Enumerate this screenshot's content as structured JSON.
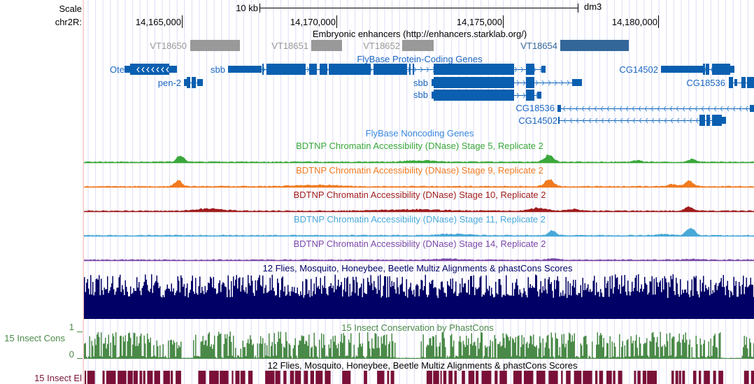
{
  "header": {
    "scale_label": "Scale",
    "scale_bar_label": "10 kb",
    "assembly": "dm3",
    "chrom_label": "chr2R:",
    "ticks": [
      "14,165,000",
      "14,170,000",
      "14,175,000",
      "14,180,000"
    ]
  },
  "colors": {
    "grid": "#dcdcf8",
    "left_edge": "#f8c8c8",
    "gene": "#0a5fb0",
    "gene_label": "#1a66c0",
    "noncoding_label": "#3a88dd",
    "enhancer_gray": "#999999",
    "enhancer_active": "#336699",
    "stage5": "#3aa83a",
    "stage9": "#f07a20",
    "stage10": "#a01c1c",
    "stage11": "#48a8d8",
    "stage14": "#7a48a8",
    "multiz": "#000066",
    "cons": "#4a8a48",
    "elements": "#7a1038"
  },
  "enhancers": {
    "title": "Embryonic enhancers (http://enhancers.starklab.org/)",
    "items": [
      "VT18650",
      "VT18651",
      "VT18652",
      "VT18654"
    ]
  },
  "genes": {
    "title": "FlyBase Protein-Coding Genes",
    "labels": [
      "Ote",
      "pen-2",
      "sbb",
      "sbb",
      "sbb",
      "CG18536",
      "CG14502",
      "CG14502",
      "CG18536"
    ]
  },
  "noncoding": {
    "title": "FlyBase Noncoding Genes"
  },
  "dnase_tracks": [
    {
      "title": "BDTNP Chromatin Accessibility (DNase) Stage 5, Replicate 2"
    },
    {
      "title": "BDTNP Chromatin Accessibility (DNase) Stage 9, Replicate 2"
    },
    {
      "title": "BDTNP Chromatin Accessibility (DNase) Stage 10, Replicate 2"
    },
    {
      "title": "BDTNP Chromatin Accessibility (DNase) Stage 11, Replicate 2"
    },
    {
      "title": "BDTNP Chromatin Accessibility (DNase) Stage 14, Replicate 2"
    }
  ],
  "multiz": {
    "title": "12 Flies, Mosquito, Honeybee, Beetle Multiz Alignments & phastCons Scores"
  },
  "cons": {
    "title": "15 Insect Conservation by PhastCons",
    "side_label": "15 Insect Cons",
    "ymax": "1",
    "ymin": "0"
  },
  "elements": {
    "title": "12 Flies, Mosquito, Honeybee, Beetle Multiz Alignments & phastCons Scores",
    "side_label": "15 Insect El"
  }
}
